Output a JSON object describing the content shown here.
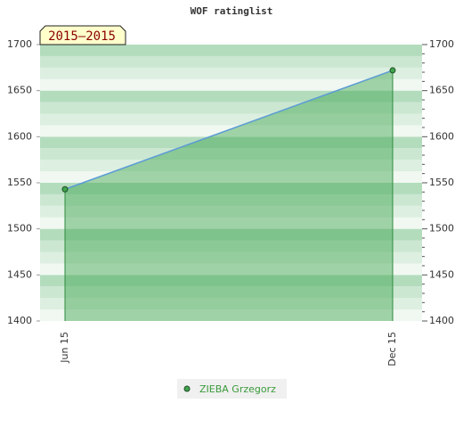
{
  "chart_data": {
    "type": "line",
    "title": "WOF ratinglist",
    "annotation": "2015–2015",
    "categories": [
      "Jun 15",
      "Dec 15"
    ],
    "series": [
      {
        "name": "ZIEBA Grzegorz",
        "color": "#5b9bd5",
        "fill": "#3fa34d",
        "values": [
          1543,
          1672
        ]
      }
    ],
    "ylim": [
      1400,
      1700
    ],
    "yticks": [
      1400,
      1450,
      1500,
      1550,
      1600,
      1650,
      1700
    ],
    "y2lim": [
      1400,
      1700
    ],
    "y2ticks": [
      1400,
      1450,
      1500,
      1550,
      1600,
      1650,
      1700
    ]
  }
}
